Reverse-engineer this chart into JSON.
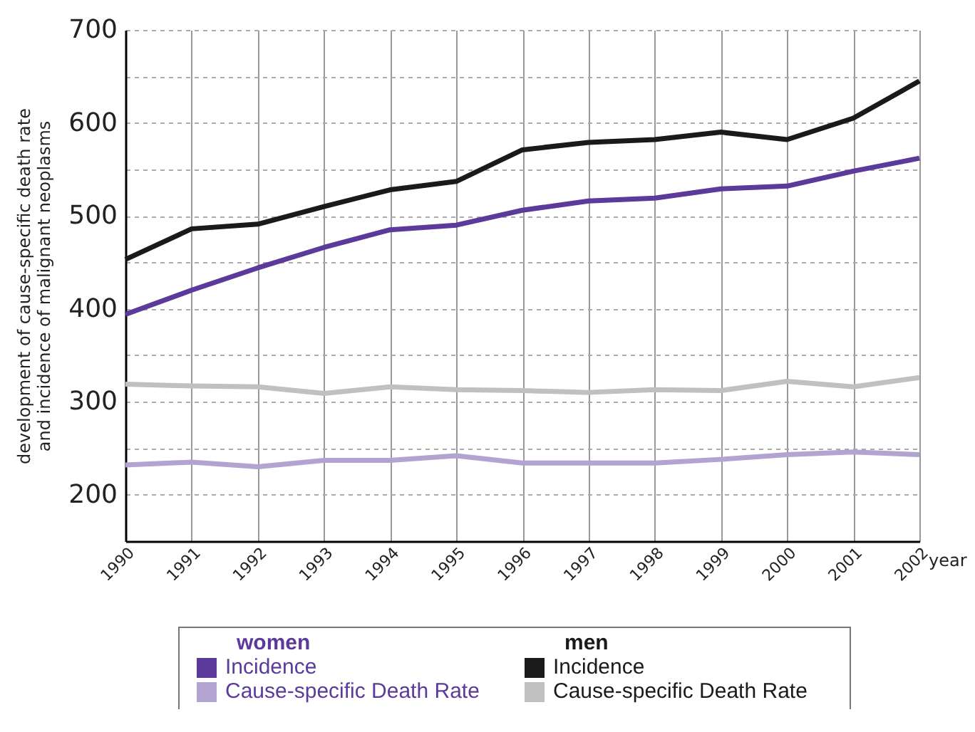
{
  "chart_data": {
    "type": "line",
    "xlabel": "year",
    "ylabel": "development of cause-specific death rate\nand incidence of malignant neoplasms",
    "x": [
      1990,
      1991,
      1992,
      1993,
      1994,
      1995,
      1996,
      1997,
      1998,
      1999,
      2000,
      2001,
      2002
    ],
    "xlim": [
      1990,
      2002
    ],
    "xticks": [
      1990,
      1991,
      1992,
      1993,
      1994,
      1995,
      1996,
      1997,
      1998,
      1999,
      2000,
      2001,
      2002
    ],
    "ylim": [
      150,
      700
    ],
    "yticks": [
      200,
      {
        "value": 250,
        "label": null
      },
      300,
      {
        "value": 350,
        "label": null
      },
      400,
      {
        "value": 450,
        "label": null
      },
      500,
      {
        "value": 550,
        "label": null
      },
      600,
      {
        "value": 650,
        "label": null
      },
      700
    ],
    "grid": true,
    "legend": "bottom",
    "line_style": "solid",
    "annotations": [
      "women",
      "men"
    ],
    "series": [
      {
        "name": "Incidence",
        "color": "#5b3a9b",
        "values": [
          394,
          420,
          444,
          466,
          485,
          490,
          506,
          516,
          519,
          529,
          532,
          548,
          562
        ]
      },
      {
        "name": "Cause-specific Death Rate",
        "color": "#b3a3d0",
        "values": [
          232,
          235,
          230,
          237,
          237,
          242,
          234,
          234,
          234,
          238,
          243,
          246,
          243
        ]
      },
      {
        "name": "Incidence",
        "color": "#1a1a1a",
        "values": [
          453,
          486,
          491,
          510,
          528,
          537,
          571,
          579,
          582,
          590,
          582,
          605,
          645
        ]
      },
      {
        "name": "Cause-specific Death Rate",
        "color": "#c0c0c0",
        "values": [
          319,
          317,
          316,
          309,
          316,
          313,
          312,
          310,
          313,
          312,
          322,
          316,
          326
        ]
      }
    ]
  }
}
